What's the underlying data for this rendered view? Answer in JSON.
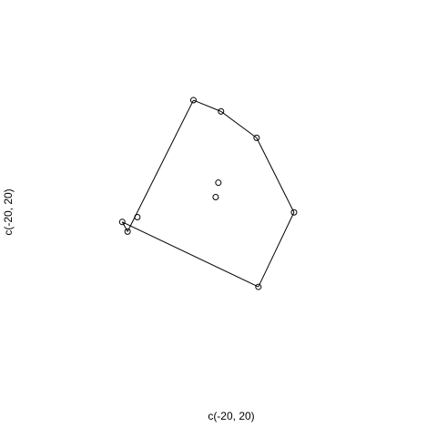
{
  "chart_data": {
    "type": "scatter",
    "xlabel": "c(-20, 20)",
    "ylabel": "c(-20, 20)",
    "xlim": [
      -20,
      20
    ],
    "ylim": [
      -20,
      20
    ],
    "axes": false,
    "grid": false,
    "legend": "none",
    "points": [
      {
        "x": -11.7,
        "y": -2.2
      },
      {
        "x": -10.6,
        "y": -0.4
      },
      {
        "x": -12.3,
        "y": -1.0
      },
      {
        "x": -4.3,
        "y": 14.2
      },
      {
        "x": -1.2,
        "y": 12.8
      },
      {
        "x": 2.8,
        "y": 9.5
      },
      {
        "x": 7.0,
        "y": 0.2
      },
      {
        "x": 3.0,
        "y": -9.1
      },
      {
        "x": -1.5,
        "y": 3.9
      },
      {
        "x": -1.8,
        "y": 2.1
      }
    ],
    "hull_order": [
      2,
      0,
      3,
      4,
      5,
      6,
      7
    ],
    "hull_closed_between": [
      7,
      2
    ]
  }
}
